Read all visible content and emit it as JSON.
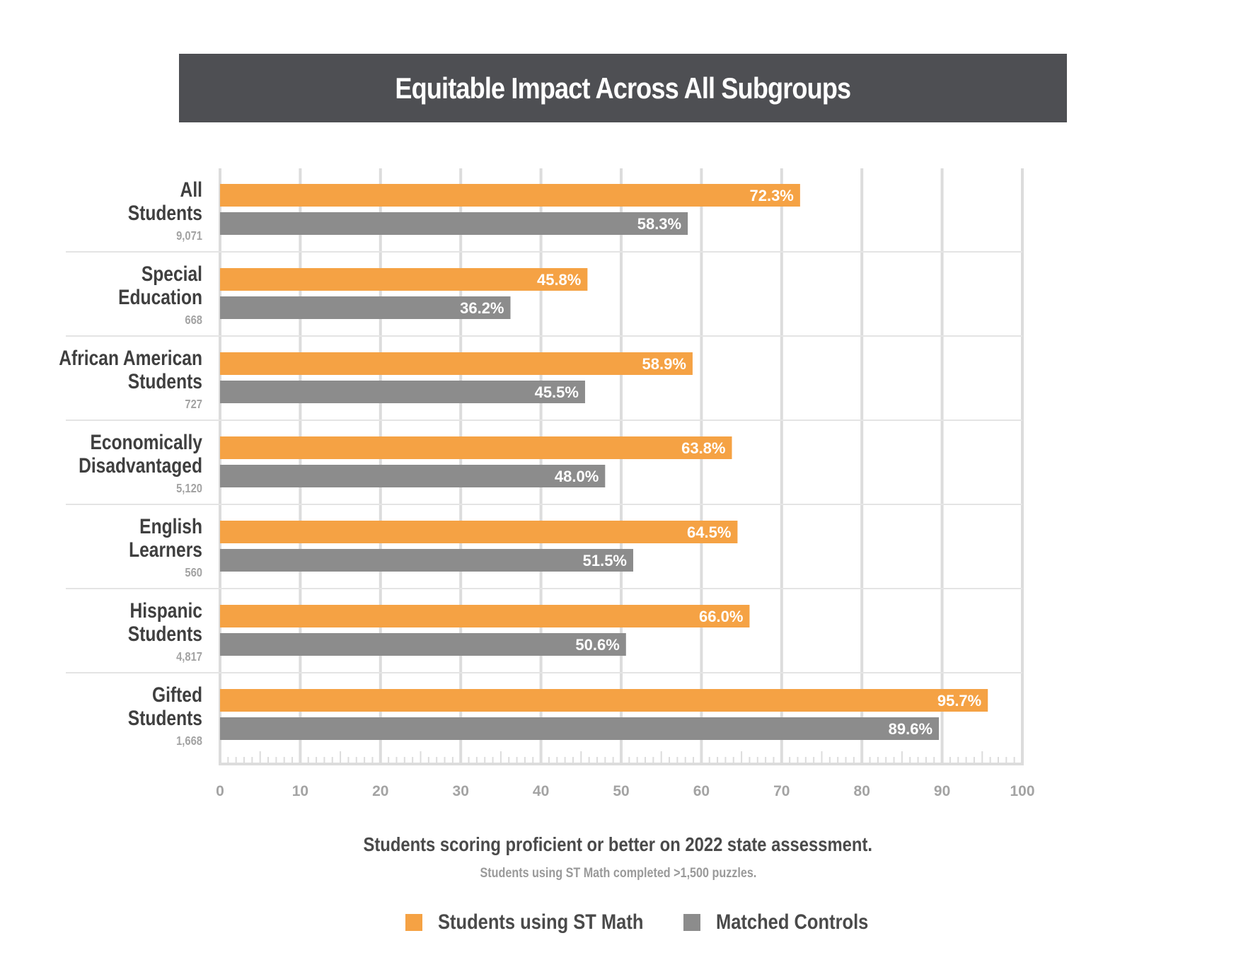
{
  "title": "Equitable Impact Across All Subgroups",
  "caption": "Students scoring proficient or better on 2022 state assessment.",
  "subcaption": "Students using ST Math completed >1,500 puzzles.",
  "colors": {
    "st_math": "#f5a244",
    "controls": "#8c8c8c",
    "title_bg": "#4e4f53",
    "grid": "#dcdcdc",
    "tick_label": "#a3a3a3"
  },
  "legend": [
    {
      "label": "Students using ST Math",
      "color": "#f5a244"
    },
    {
      "label": "Matched Controls",
      "color": "#8c8c8c"
    }
  ],
  "chart_data": {
    "type": "bar",
    "orientation": "horizontal",
    "title": "Equitable Impact Across All Subgroups",
    "xlabel": "Students scoring proficient or better on 2022 state assessment.",
    "xlim": [
      0,
      100
    ],
    "xticks": [
      0,
      10,
      20,
      30,
      40,
      50,
      60,
      70,
      80,
      90,
      100
    ],
    "grid": true,
    "legend_position": "bottom",
    "categories": [
      {
        "lines": [
          "All",
          "Students"
        ],
        "n": "9,071"
      },
      {
        "lines": [
          "Special",
          "Education"
        ],
        "n": "668"
      },
      {
        "lines": [
          "African American",
          "Students"
        ],
        "n": "727"
      },
      {
        "lines": [
          "Economically",
          "Disadvantaged"
        ],
        "n": "5,120"
      },
      {
        "lines": [
          "English",
          "Learners"
        ],
        "n": "560"
      },
      {
        "lines": [
          "Hispanic",
          "Students"
        ],
        "n": "4,817"
      },
      {
        "lines": [
          "Gifted",
          "Students"
        ],
        "n": "1,668"
      }
    ],
    "series": [
      {
        "name": "Students using ST Math",
        "values": [
          72.3,
          45.8,
          58.9,
          63.8,
          64.5,
          66.0,
          95.7
        ],
        "labels": [
          "72.3%",
          "45.8%",
          "58.9%",
          "63.8%",
          "64.5%",
          "66.0%",
          "95.7%"
        ]
      },
      {
        "name": "Matched Controls",
        "values": [
          58.3,
          36.2,
          45.5,
          48.0,
          51.5,
          50.6,
          89.6
        ],
        "labels": [
          "58.3%",
          "36.2%",
          "45.5%",
          "48.0%",
          "51.5%",
          "50.6%",
          "89.6%"
        ]
      }
    ]
  }
}
